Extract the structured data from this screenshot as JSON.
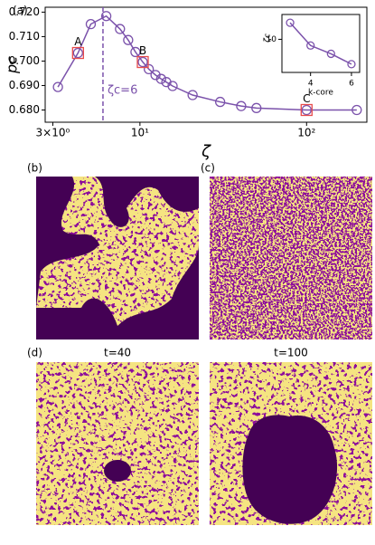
{
  "chart_data": [
    {
      "type": "line",
      "xscale": "log",
      "color": "#7b52ab",
      "xlabel": "ζ",
      "ylabel": "pc",
      "x": [
        3.22,
        4.25,
        5.07,
        6.28,
        7.59,
        8.5,
        9.4,
        10.4,
        11.3,
        12.4,
        13.4,
        14.4,
        15.7,
        20.7,
        30.3,
        40.5,
        50,
        100,
        200
      ],
      "series": [
        {
          "values": [
            0.6894,
            0.7033,
            0.7151,
            0.7184,
            0.7131,
            0.7086,
            0.7037,
            0.6996,
            0.6967,
            0.6943,
            0.6927,
            0.6914,
            0.6898,
            0.6861,
            0.6833,
            0.6816,
            0.6808,
            0.68,
            0.68
          ]
        }
      ],
      "xlim": [
        2.7,
        230
      ],
      "ylim": [
        0.675,
        0.722
      ],
      "xticks": [
        {
          "value": 3,
          "label": "3×10⁰"
        },
        {
          "value": 10,
          "label": "10¹"
        },
        {
          "value": 100,
          "label": "10²"
        }
      ],
      "yticks": [
        {
          "value": 0.68,
          "label": "0.680"
        },
        {
          "value": 0.69,
          "label": "0.690"
        },
        {
          "value": 0.7,
          "label": "0.700"
        },
        {
          "value": 0.71,
          "label": "0.710"
        },
        {
          "value": 0.72,
          "label": "0.720"
        }
      ],
      "vline": {
        "x": 6,
        "label": "ζc=6"
      },
      "annotations": [
        {
          "text": "A",
          "x": 4.25,
          "y": 0.7033
        },
        {
          "text": "B",
          "x": 10.4,
          "y": 0.6996
        },
        {
          "text": "C",
          "x": 100,
          "y": 0.68
        }
      ],
      "annotation_color": "#e84b4b"
    },
    {
      "type": "line",
      "color": "#7b52ab",
      "xlabel": "k-core",
      "ylabel": "ζc",
      "x": [
        3,
        4,
        5,
        6
      ],
      "series": [
        {
          "values": [
            14,
            8.5,
            6.5,
            4
          ]
        }
      ],
      "xlim": [
        2.6,
        6.4
      ],
      "ylim": [
        2,
        16
      ],
      "xticks": [
        4,
        6
      ],
      "yticks": [
        10
      ]
    }
  ],
  "panels": {
    "a": "(a)",
    "b": "(b)",
    "c": "(c)",
    "d": "(d)",
    "t1": "t=40",
    "t2": "t=100"
  }
}
